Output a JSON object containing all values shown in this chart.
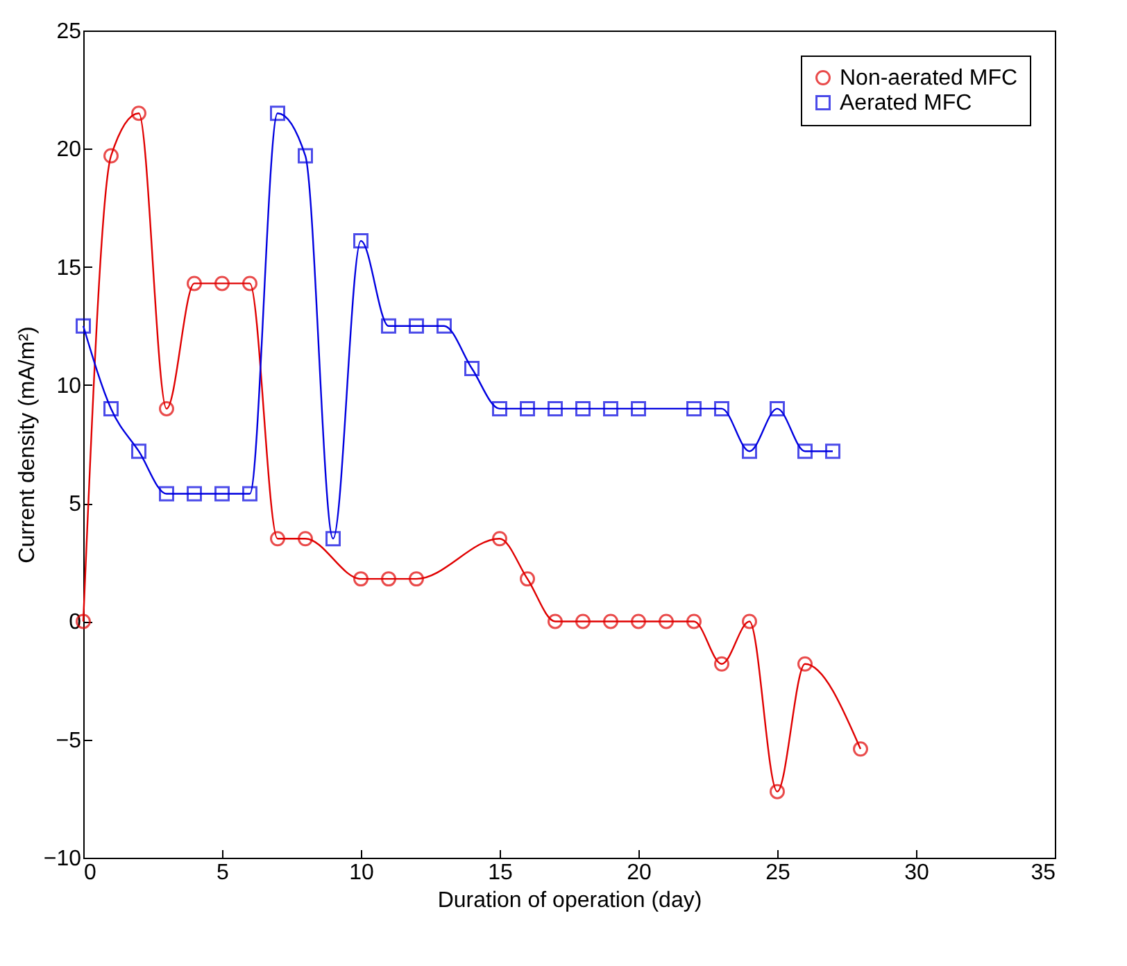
{
  "chart_data": {
    "type": "line",
    "xlabel": "Duration of operation (day)",
    "ylabel": "Current density (mA/m²)",
    "xlim": [
      0,
      35
    ],
    "xticks": [
      0,
      5,
      10,
      15,
      20,
      25,
      30,
      35
    ],
    "ylim": [
      -10,
      25
    ],
    "yticks": [
      -10,
      -5,
      0,
      5,
      10,
      15,
      20,
      25
    ],
    "grid": false,
    "legend": "top right",
    "line_style": "solid",
    "series": [
      {
        "name": "Non-aerated MFC",
        "color": "#e00000",
        "marker": "circle",
        "x": [
          0,
          1,
          2,
          3,
          4,
          5,
          6,
          7,
          8,
          10,
          11,
          12,
          15,
          16,
          17,
          18,
          19,
          20,
          21,
          22,
          23,
          24,
          25,
          26,
          28
        ],
        "values": [
          0,
          19.7,
          21.5,
          9.0,
          14.3,
          14.3,
          14.3,
          3.5,
          3.5,
          1.8,
          1.8,
          1.8,
          3.5,
          1.8,
          0,
          0,
          0,
          0,
          0,
          0,
          -1.8,
          0,
          -7.2,
          -1.8,
          -5.4
        ]
      },
      {
        "name": "Aerated MFC",
        "color": "#0000e0",
        "marker": "square",
        "x": [
          0,
          1,
          2,
          3,
          4,
          5,
          6,
          7,
          8,
          9,
          10,
          11,
          12,
          13,
          14,
          15,
          16,
          17,
          18,
          19,
          20,
          22,
          23,
          24,
          25,
          26,
          27
        ],
        "values": [
          12.5,
          9.0,
          7.2,
          5.4,
          5.4,
          5.4,
          5.4,
          21.5,
          19.7,
          3.5,
          16.1,
          12.5,
          12.5,
          12.5,
          10.7,
          9.0,
          9.0,
          9.0,
          9.0,
          9.0,
          9.0,
          9.0,
          9.0,
          7.2,
          9.0,
          7.2,
          7.2
        ]
      }
    ]
  }
}
